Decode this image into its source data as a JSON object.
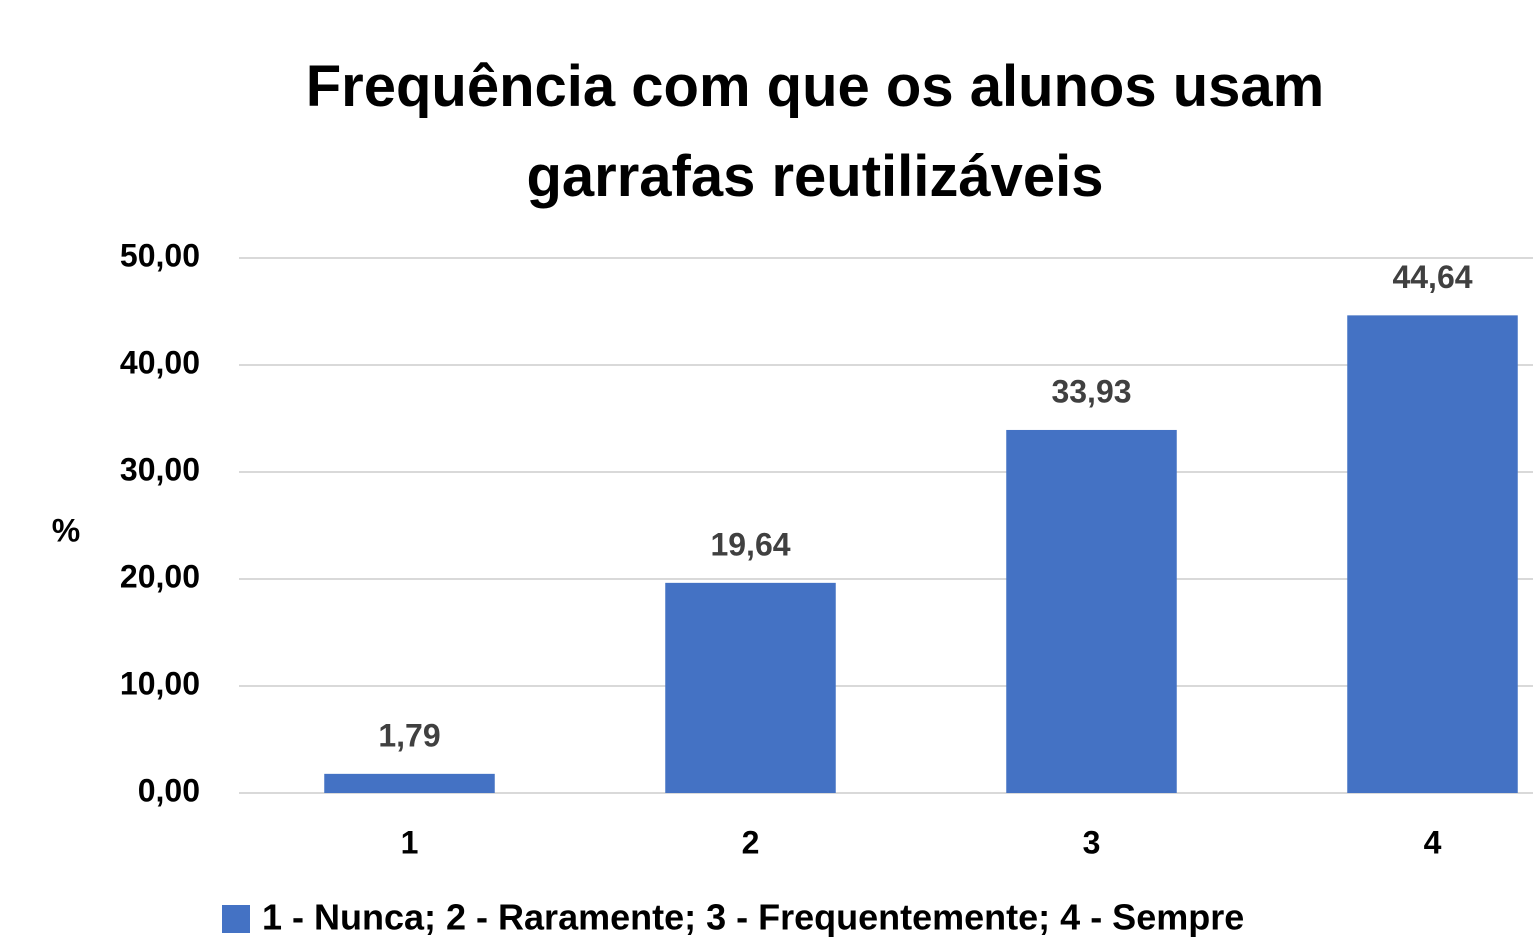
{
  "chart_data": {
    "type": "bar",
    "title": "Frequência com que os alunos usam garrafas reutilizáveis",
    "y_label": "%",
    "categories": [
      "1",
      "2",
      "3",
      "4"
    ],
    "series": [
      {
        "name": "1 - Nunca; 2 - Raramente; 3 - Frequentemente; 4 - Sempre",
        "color": "#4472c4",
        "values": [
          1.79,
          19.64,
          33.93,
          44.64
        ],
        "value_labels": [
          "1,79",
          "19,64",
          "33,93",
          "44,64"
        ]
      }
    ],
    "ylim": [
      0,
      50
    ],
    "yticks": [
      {
        "value": 0,
        "label": "0,00"
      },
      {
        "value": 10,
        "label": "10,00"
      },
      {
        "value": 20,
        "label": "20,00"
      },
      {
        "value": 30,
        "label": "30,00"
      },
      {
        "value": 40,
        "label": "40,00"
      },
      {
        "value": 50,
        "label": "50,00"
      }
    ],
    "grid": true,
    "legend": "bottom"
  }
}
